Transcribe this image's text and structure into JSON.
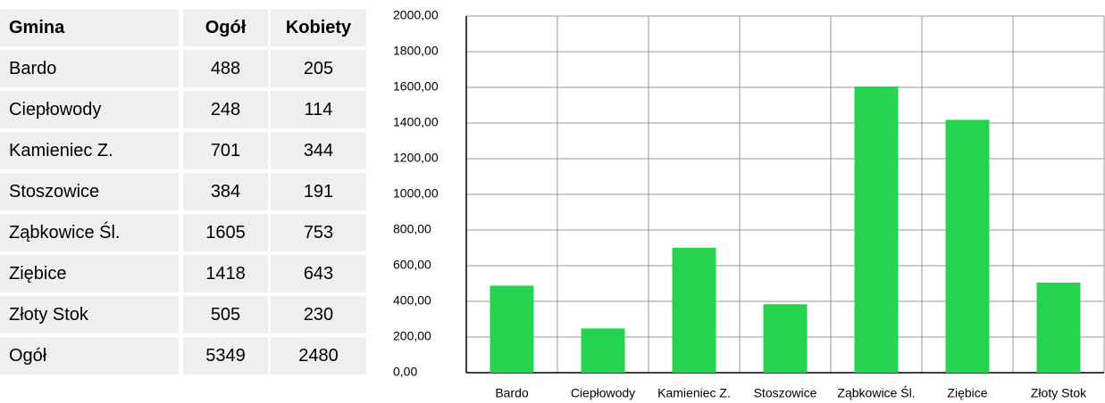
{
  "table": {
    "header": [
      "Gmina",
      "Ogół",
      "Kobiety"
    ],
    "rows": [
      [
        "Bardo",
        "488",
        "205"
      ],
      [
        "Ciepłowody",
        "248",
        "114"
      ],
      [
        "Kamieniec Z.",
        "701",
        "344"
      ],
      [
        "Stoszowice",
        "384",
        "191"
      ],
      [
        "Ząbkowice Śl.",
        "1605",
        "753"
      ],
      [
        "Ziębice",
        "1418",
        "643"
      ],
      [
        "Złoty Stok",
        "505",
        "230"
      ],
      [
        "Ogół",
        "5349",
        "2480"
      ]
    ]
  },
  "chart_data": {
    "type": "bar",
    "categories": [
      "Bardo",
      "Ciepłowody",
      "Kamieniec Z.",
      "Stoszowice",
      "Ząbkowice Śl.",
      "Ziębice",
      "Złoty Stok"
    ],
    "values": [
      488,
      248,
      701,
      384,
      1605,
      1418,
      505
    ],
    "color": "#25d44e",
    "ylim": [
      0,
      2000
    ],
    "yticks": [
      {
        "value": 0,
        "label": "0,00"
      },
      {
        "value": 200,
        "label": "200,00"
      },
      {
        "value": 400,
        "label": "400,00"
      },
      {
        "value": 600,
        "label": "600,00"
      },
      {
        "value": 800,
        "label": "800,00"
      },
      {
        "value": 1000,
        "label": "1000,00"
      },
      {
        "value": 1200,
        "label": "1200,00"
      },
      {
        "value": 1400,
        "label": "1400,00"
      },
      {
        "value": 1600,
        "label": "1600,00"
      },
      {
        "value": 1800,
        "label": "1800,00"
      },
      {
        "value": 2000,
        "label": "2000,00"
      }
    ],
    "grid": true
  }
}
